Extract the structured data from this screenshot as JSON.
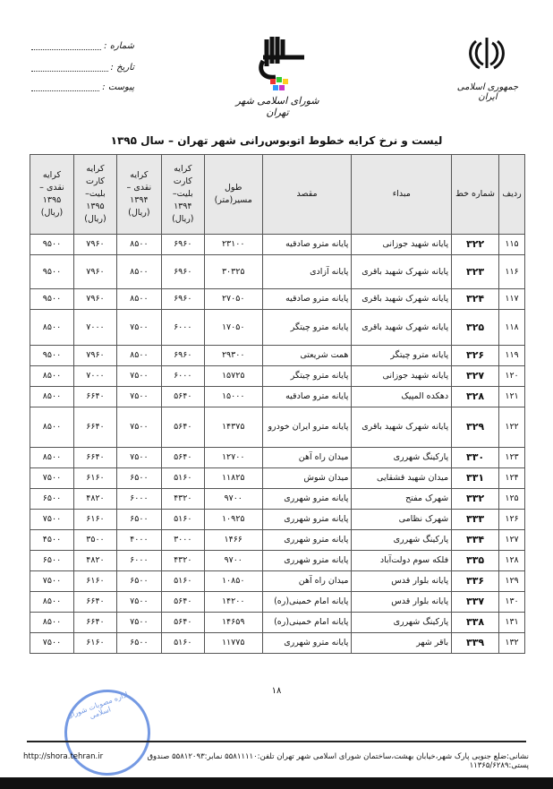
{
  "header": {
    "emblem_caption": "جمهوری اسلامی ایران",
    "logo_caption": "شورای اسلامی شهر تهران",
    "fields": [
      {
        "label": "شماره :"
      },
      {
        "label": "تاریخ :"
      },
      {
        "label": "پیوست :"
      }
    ]
  },
  "title": "لیست و نرخ کرایه خطوط اتوبوس‌رانی شهر تهران – سال ۱۳۹۵",
  "table": {
    "columns": [
      "ردیف",
      "شماره خط",
      "مبداء",
      "مقصد",
      "طول مسیر(متر)",
      "کرایه کارت بلیت–۱۳۹۴ (ریال)",
      "کرایه نقدی –۱۳۹۴ (ریال)",
      "کرایه کارت بلیت–۱۳۹۵ (ریال)",
      "کرایه نقدی –۱۳۹۵ (ریال)"
    ],
    "rows": [
      [
        "۱۱۵",
        "۳۲۲",
        "پایانه شهید جوزانی",
        "پایانه مترو صادقیه",
        "۲۳۱۰۰",
        "۶۹۶۰",
        "۸۵۰۰",
        "۷۹۶۰",
        "۹۵۰۰"
      ],
      [
        "۱۱۶",
        "۳۲۳",
        "پایانه شهرک شهید باقری",
        "پایانه آزادی",
        "۳۰۳۲۵",
        "۶۹۶۰",
        "۸۵۰۰",
        "۷۹۶۰",
        "۹۵۰۰"
      ],
      [
        "۱۱۷",
        "۳۲۴",
        "پایانه شهرک شهید باقری",
        "پایانه مترو صادقیه",
        "۲۷۰۵۰",
        "۶۹۶۰",
        "۸۵۰۰",
        "۷۹۶۰",
        "۹۵۰۰"
      ],
      [
        "۱۱۸",
        "۳۲۵",
        "پایانه شهرک شهید باقری",
        "پایانه مترو چیتگر",
        "۱۷۰۵۰",
        "۶۰۰۰",
        "۷۵۰۰",
        "۷۰۰۰",
        "۸۵۰۰"
      ],
      [
        "۱۱۹",
        "۳۲۶",
        "پایانه مترو چیتگر",
        "همت شریعتی",
        "۲۹۳۰۰",
        "۶۹۶۰",
        "۸۵۰۰",
        "۷۹۶۰",
        "۹۵۰۰"
      ],
      [
        "۱۲۰",
        "۳۲۷",
        "پایانه شهید جوزانی",
        "پایانه مترو چیتگر",
        "۱۵۷۲۵",
        "۶۰۰۰",
        "۷۵۰۰",
        "۷۰۰۰",
        "۸۵۰۰"
      ],
      [
        "۱۲۱",
        "۳۲۸",
        "دهکده المپیک",
        "پایانه مترو صادقیه",
        "۱۵۰۰۰",
        "۵۶۴۰",
        "۷۵۰۰",
        "۶۶۴۰",
        "۸۵۰۰"
      ],
      [
        "۱۲۲",
        "۳۲۹",
        "پایانه شهرک شهید باقری",
        "پایانه مترو ایران خودرو",
        "۱۴۳۷۵",
        "۵۶۴۰",
        "۷۵۰۰",
        "۶۶۴۰",
        "۸۵۰۰"
      ],
      [
        "۱۲۳",
        "۳۳۰",
        "پارکینگ شهرری",
        "میدان راه آهن",
        "۱۲۷۰۰",
        "۵۶۴۰",
        "۷۵۰۰",
        "۶۶۴۰",
        "۸۵۰۰"
      ],
      [
        "۱۲۴",
        "۳۳۱",
        "میدان شهید قشقایی",
        "میدان شوش",
        "۱۱۸۲۵",
        "۵۱۶۰",
        "۶۵۰۰",
        "۶۱۶۰",
        "۷۵۰۰"
      ],
      [
        "۱۲۵",
        "۳۳۲",
        "شهرک مفتح",
        "پایانه مترو شهرری",
        "۹۷۰۰",
        "۴۳۲۰",
        "۶۰۰۰",
        "۴۸۲۰",
        "۶۵۰۰"
      ],
      [
        "۱۲۶",
        "۳۳۳",
        "شهرک نظامی",
        "پایانه مترو شهرری",
        "۱۰۹۲۵",
        "۵۱۶۰",
        "۶۵۰۰",
        "۶۱۶۰",
        "۷۵۰۰"
      ],
      [
        "۱۲۷",
        "۳۳۴",
        "پارکینگ شهرری",
        "پایانه مترو شهرری",
        "۱۴۶۶",
        "۳۰۰۰",
        "۴۰۰۰",
        "۳۵۰۰",
        "۴۵۰۰"
      ],
      [
        "۱۲۸",
        "۳۳۵",
        "فلکه سوم دولت‌آباد",
        "پایانه مترو شهرری",
        "۹۷۰۰",
        "۴۳۲۰",
        "۶۰۰۰",
        "۴۸۲۰",
        "۶۵۰۰"
      ],
      [
        "۱۲۹",
        "۳۳۶",
        "پایانه بلوار قدس",
        "میدان راه آهن",
        "۱۰۸۵۰",
        "۵۱۶۰",
        "۶۵۰۰",
        "۶۱۶۰",
        "۷۵۰۰"
      ],
      [
        "۱۳۰",
        "۳۳۷",
        "پایانه بلوار قدس",
        "پایانه امام خمینی(ره)",
        "۱۴۲۰۰",
        "۵۶۴۰",
        "۷۵۰۰",
        "۶۶۴۰",
        "۸۵۰۰"
      ],
      [
        "۱۳۱",
        "۳۳۸",
        "پارکینگ شهرری",
        "پایانه امام خمینی(ره)",
        "۱۴۶۵۹",
        "۵۶۴۰",
        "۷۵۰۰",
        "۶۶۴۰",
        "۸۵۰۰"
      ],
      [
        "۱۳۲",
        "۳۳۹",
        "باقر شهر",
        "پایانه مترو شهرری",
        "۱۱۷۷۵",
        "۵۱۶۰",
        "۶۵۰۰",
        "۶۱۶۰",
        "۷۵۰۰"
      ]
    ]
  },
  "page_number": "۱۸",
  "stamp_text": "اداره مصوبات شورای اسلامی",
  "footer": {
    "address": "نشانی:ضلع جنوبی پارک شهر،خیابان بهشت،ساختمان شورای اسلامی شهر تهران  تلفن:۵۵۸۱۱۱۱۰ نمابر:۵۵۸۱۲۰۹۳ صندوق پستی:۱۱۳۶۵/۶۲۸۹",
    "url": "http://shora.tehran.ir"
  },
  "colors": {
    "stamp": "#3a6fd8",
    "header_bg": "#e8e8e8"
  }
}
